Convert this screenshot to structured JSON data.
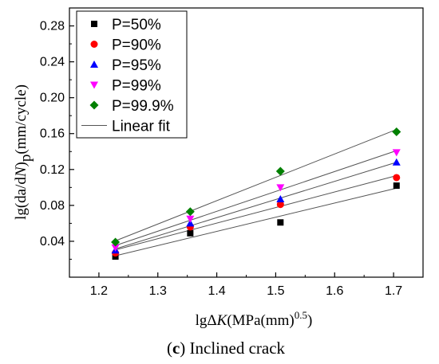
{
  "chart_data": {
    "type": "scatter",
    "xlabel": {
      "prefix": "lgΔ",
      "var": "K",
      "unit": "(MPa(mm)",
      "exp": "0.5",
      "close": ")"
    },
    "ylabel": {
      "prefix": "lg(da/d",
      "var": "N",
      "close": ")",
      "sub": "p",
      "unit": "(mm/cycle)"
    },
    "xlim": [
      1.15,
      1.75
    ],
    "ylim": [
      0.0,
      0.3
    ],
    "x_ticks": [
      1.2,
      1.3,
      1.4,
      1.5,
      1.6,
      1.7
    ],
    "x_tick_labels": [
      "1.2",
      "1.3",
      "1.4",
      "1.5",
      "1.6",
      "1.7"
    ],
    "y_ticks": [
      0.04,
      0.08,
      0.12,
      0.16,
      0.2,
      0.24,
      0.28
    ],
    "y_tick_labels": [
      "0.04",
      "0.08",
      "0.12",
      "0.16",
      "0.20",
      "0.24",
      "0.28"
    ],
    "x": [
      1.228,
      1.355,
      1.508,
      1.705
    ],
    "series": [
      {
        "name": "P=50%",
        "marker": "square",
        "color": "#000000",
        "values": [
          0.023,
          0.049,
          0.061,
          0.102
        ]
      },
      {
        "name": "P=90%",
        "marker": "circle",
        "color": "#ff0000",
        "values": [
          0.027,
          0.056,
          0.081,
          0.111
        ]
      },
      {
        "name": "P=95%",
        "marker": "triangle-up",
        "color": "#0000ff",
        "values": [
          0.03,
          0.06,
          0.087,
          0.128
        ]
      },
      {
        "name": "P=99%",
        "marker": "triangle-down",
        "color": "#ff00ff",
        "values": [
          0.033,
          0.065,
          0.1,
          0.139
        ]
      },
      {
        "name": "P=99.9%",
        "marker": "diamond",
        "color": "#008000",
        "values": [
          0.039,
          0.073,
          0.118,
          0.162
        ]
      }
    ],
    "fit_line": {
      "name": "Linear fit",
      "color": "#555555"
    },
    "legend_position": "top-left",
    "grid": false
  },
  "caption": {
    "open": "(",
    "letter": "c",
    "close": ")",
    "text": " Inclined crack"
  }
}
